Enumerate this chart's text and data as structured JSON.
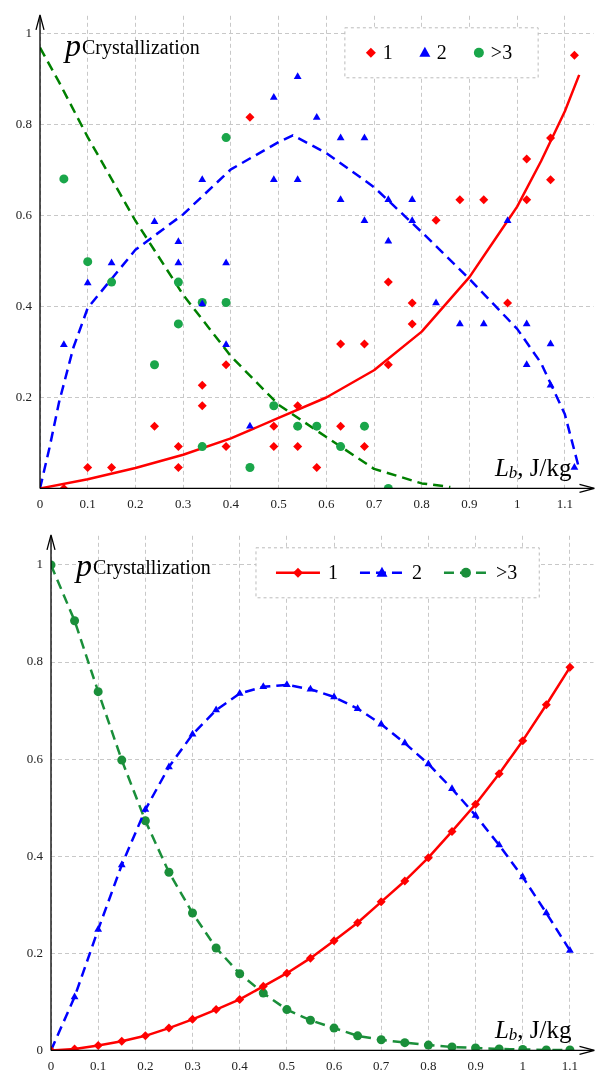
{
  "chart_data": [
    {
      "type": "scatter",
      "ylabel": "p$_{Crystallization}$",
      "xlabel": "L$_{b}$, J/kg",
      "xlim": [
        0,
        1.16
      ],
      "ylim": [
        0,
        1.04
      ],
      "xticks": [
        0,
        0.1,
        0.2,
        0.3,
        0.4,
        0.5,
        0.6,
        0.7,
        0.8,
        0.9,
        1,
        1.1
      ],
      "yticks": [
        0.2,
        0.4,
        0.6,
        0.8,
        1
      ],
      "grid": true,
      "legend": "top right",
      "series": [
        {
          "name": "1",
          "color": "#ff0000",
          "marker": "diamond",
          "x": [
            0.05,
            0.1,
            0.15,
            0.24,
            0.29,
            0.29,
            0.34,
            0.34,
            0.39,
            0.39,
            0.44,
            0.49,
            0.49,
            0.54,
            0.54,
            0.58,
            0.63,
            0.63,
            0.68,
            0.68,
            0.73,
            0.73,
            0.78,
            0.78,
            0.83,
            0.88,
            0.93,
            0.98,
            1.02,
            1.02,
            1.07,
            1.07,
            1.12
          ],
          "values": [
            0,
            0.046,
            0.046,
            0.137,
            0.092,
            0.046,
            0.227,
            0.182,
            0.272,
            0.092,
            0.817,
            0.137,
            0.092,
            0.182,
            0.092,
            0.046,
            0.137,
            0.318,
            0.318,
            0.092,
            0.454,
            0.272,
            0.408,
            0.362,
            0.59,
            0.635,
            0.635,
            0.408,
            0.725,
            0.635,
            0.771,
            0.679,
            0.953
          ]
        },
        {
          "name": "2",
          "color": "#0000ff",
          "marker": "triangle",
          "x": [
            0.05,
            0.1,
            0.15,
            0.24,
            0.29,
            0.29,
            0.34,
            0.34,
            0.39,
            0.39,
            0.44,
            0.49,
            0.49,
            0.54,
            0.54,
            0.58,
            0.63,
            0.68,
            0.63,
            0.68,
            0.73,
            0.73,
            0.78,
            0.78,
            0.83,
            0.88,
            0.93,
            0.98,
            1.02,
            1.02,
            1.07,
            1.07,
            1.12
          ],
          "values": [
            0.316,
            0.452,
            0.496,
            0.587,
            0.543,
            0.496,
            0.679,
            0.406,
            0.496,
            0.316,
            0.137,
            0.86,
            0.679,
            0.906,
            0.679,
            0.816,
            0.771,
            0.771,
            0.635,
            0.589,
            0.635,
            0.544,
            0.635,
            0.589,
            0.408,
            0.362,
            0.362,
            0.589,
            0.362,
            0.272,
            0.318,
            0.227,
            0.046
          ]
        },
        {
          "name": ">3",
          "color": "#1aa64a",
          "marker": "circle",
          "x": [
            0.05,
            0.1,
            0.15,
            0.24,
            0.29,
            0.29,
            0.34,
            0.34,
            0.39,
            0.39,
            0.44,
            0.49,
            0.54,
            0.58,
            0.63,
            0.68,
            0.73
          ],
          "values": [
            0.681,
            0.499,
            0.454,
            0.272,
            0.454,
            0.362,
            0.409,
            0.092,
            0.772,
            0.409,
            0.046,
            0.182,
            0.137,
            0.137,
            0.092,
            0.137,
            0
          ]
        },
        {
          "type": "line",
          "color": "#ff0000",
          "marker": "none",
          "line_style": "solid",
          "x": [
            0,
            0.1,
            0.2,
            0.3,
            0.4,
            0.5,
            0.6,
            0.7,
            0.8,
            0.9,
            1,
            1.05,
            1.1,
            1.13
          ],
          "values": [
            0,
            0.02,
            0.045,
            0.074,
            0.11,
            0.155,
            0.2,
            0.26,
            0.345,
            0.465,
            0.62,
            0.72,
            0.83,
            0.91
          ]
        },
        {
          "type": "line",
          "color": "#0000ff",
          "marker": "none",
          "line_style": "dashed",
          "x": [
            0,
            0.02,
            0.04,
            0.07,
            0.1,
            0.2,
            0.3,
            0.4,
            0.5,
            0.53,
            0.6,
            0.7,
            0.8,
            0.9,
            1,
            1.05,
            1.1,
            1.13
          ],
          "values": [
            0,
            0.09,
            0.19,
            0.31,
            0.397,
            0.525,
            0.603,
            0.702,
            0.762,
            0.777,
            0.738,
            0.663,
            0.564,
            0.461,
            0.351,
            0.276,
            0.163,
            0.043
          ]
        },
        {
          "type": "line",
          "color": "#008000",
          "marker": "none",
          "line_style": "dashed",
          "x": [
            0,
            0.04,
            0.1,
            0.2,
            0.3,
            0.4,
            0.5,
            0.6,
            0.7,
            0.8,
            0.86
          ],
          "values": [
            0.97,
            0.894,
            0.773,
            0.589,
            0.426,
            0.291,
            0.184,
            0.113,
            0.043,
            0.011,
            0.003
          ]
        }
      ]
    },
    {
      "type": "line",
      "ylabel": "p$_{Crystallization}$",
      "xlabel": "L$_{b}$, J/kg",
      "xlim": [
        0,
        1.15
      ],
      "ylim": [
        0,
        1.06
      ],
      "xticks": [
        0,
        0.1,
        0.2,
        0.3,
        0.4,
        0.5,
        0.6,
        0.7,
        0.8,
        0.9,
        1,
        1.1
      ],
      "yticks": [
        0,
        0.2,
        0.4,
        0.6,
        0.8,
        1
      ],
      "grid": true,
      "legend": "top right",
      "x": [
        0,
        0.05,
        0.1,
        0.15,
        0.2,
        0.25,
        0.3,
        0.35,
        0.4,
        0.45,
        0.5,
        0.55,
        0.6,
        0.65,
        0.7,
        0.75,
        0.8,
        0.85,
        0.9,
        0.95,
        1,
        1.05,
        1.1
      ],
      "series": [
        {
          "name": "1",
          "color": "#ff0000",
          "marker": "diamond",
          "line_style": "solid",
          "values": [
            0,
            0.003,
            0.01,
            0.019,
            0.03,
            0.046,
            0.064,
            0.084,
            0.105,
            0.132,
            0.159,
            0.19,
            0.226,
            0.263,
            0.306,
            0.349,
            0.397,
            0.451,
            0.507,
            0.57,
            0.638,
            0.712,
            0.789
          ]
        },
        {
          "name": "2",
          "color": "#0000ff",
          "marker": "triangle",
          "line_style": "dashed",
          "values": [
            0,
            0.11,
            0.249,
            0.382,
            0.496,
            0.584,
            0.651,
            0.701,
            0.735,
            0.749,
            0.753,
            0.744,
            0.728,
            0.704,
            0.672,
            0.633,
            0.59,
            0.539,
            0.484,
            0.423,
            0.357,
            0.283,
            0.206
          ]
        },
        {
          "name": ">3",
          "color": "#1a8f3a",
          "marker": "circle",
          "line_style": "dashed",
          "values": [
            1,
            0.885,
            0.739,
            0.598,
            0.473,
            0.367,
            0.283,
            0.211,
            0.158,
            0.118,
            0.084,
            0.062,
            0.046,
            0.03,
            0.022,
            0.016,
            0.011,
            0.007,
            0.005,
            0.003,
            0.002,
            0.001,
            0.001
          ]
        }
      ]
    }
  ]
}
